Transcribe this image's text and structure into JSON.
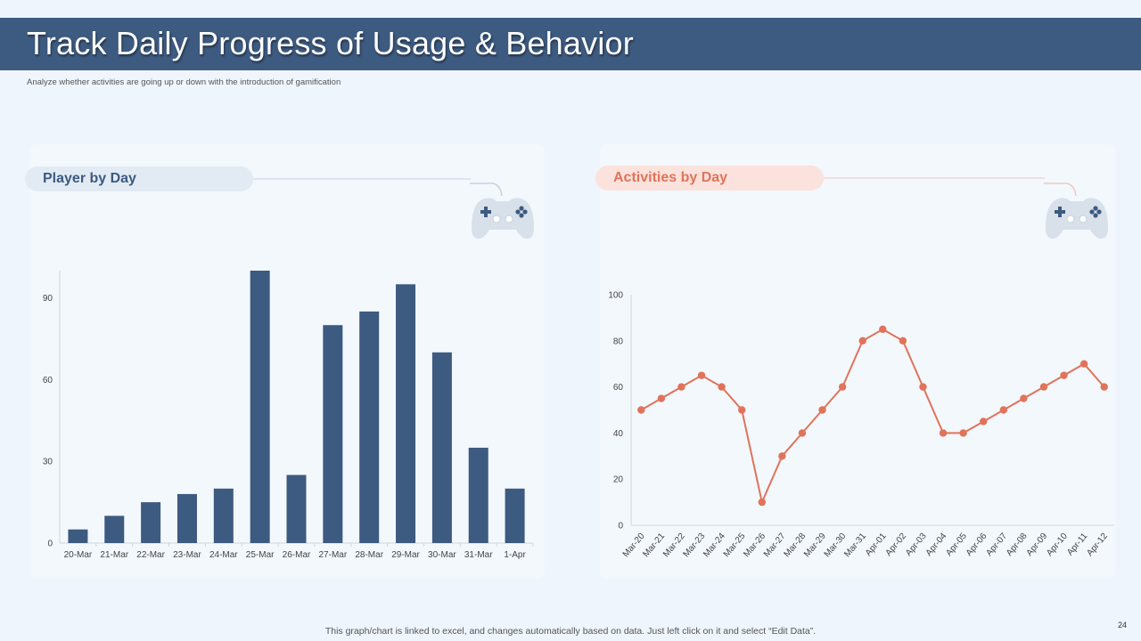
{
  "slide": {
    "title": "Track Daily Progress of Usage & Behavior",
    "subtitle": "Analyze whether activities are going up or down with the introduction of gamification",
    "footer_note": "This graph/chart is linked to excel,  and changes automatically based on data. Just left click on it and select “Edit Data”.",
    "page_number": "24"
  },
  "panels": {
    "players_label": "Player by Day",
    "activities_label": "Activities by Day",
    "icon": "gamepad-icon"
  },
  "colors": {
    "title_bar": "#3d5a80",
    "bar": "#3d5a80",
    "line": "#e0735a",
    "background": "#eef5fc"
  },
  "chart_data": [
    {
      "type": "bar",
      "title": "Player by Day",
      "categories": [
        "20-Mar",
        "21-Mar",
        "22-Mar",
        "23-Mar",
        "24-Mar",
        "25-Mar",
        "26-Mar",
        "27-Mar",
        "28-Mar",
        "29-Mar",
        "30-Mar",
        "31-Mar",
        "1-Apr"
      ],
      "values": [
        5,
        10,
        15,
        18,
        20,
        100,
        25,
        80,
        85,
        95,
        70,
        35,
        20
      ],
      "yticks": [
        0,
        30,
        60,
        90
      ],
      "ylim": [
        0,
        100
      ],
      "xlabel": "",
      "ylabel": "",
      "grid": false
    },
    {
      "type": "line",
      "title": "Activities by Day",
      "categories": [
        "Mar-20",
        "Mar-21",
        "Mar-22",
        "Mar-23",
        "Mar-24",
        "Mar-25",
        "Mar-26",
        "Mar-27",
        "Mar-28",
        "Mar-29",
        "Mar-30",
        "Mar-31",
        "Apr-01",
        "Apr-02",
        "Apr-03",
        "Apr-04",
        "Apr-05",
        "Apr-06",
        "Apr-07",
        "Apr-08",
        "Apr-09",
        "Apr-10",
        "Apr-11",
        "Apr-12"
      ],
      "values": [
        50,
        55,
        60,
        65,
        60,
        50,
        10,
        30,
        40,
        50,
        60,
        80,
        85,
        80,
        60,
        40,
        40,
        45,
        50,
        55,
        60,
        65,
        70,
        60
      ],
      "yticks": [
        0,
        20,
        40,
        60,
        80,
        100
      ],
      "ylim": [
        0,
        100
      ],
      "xlabel": "",
      "ylabel": "",
      "grid": false
    }
  ]
}
